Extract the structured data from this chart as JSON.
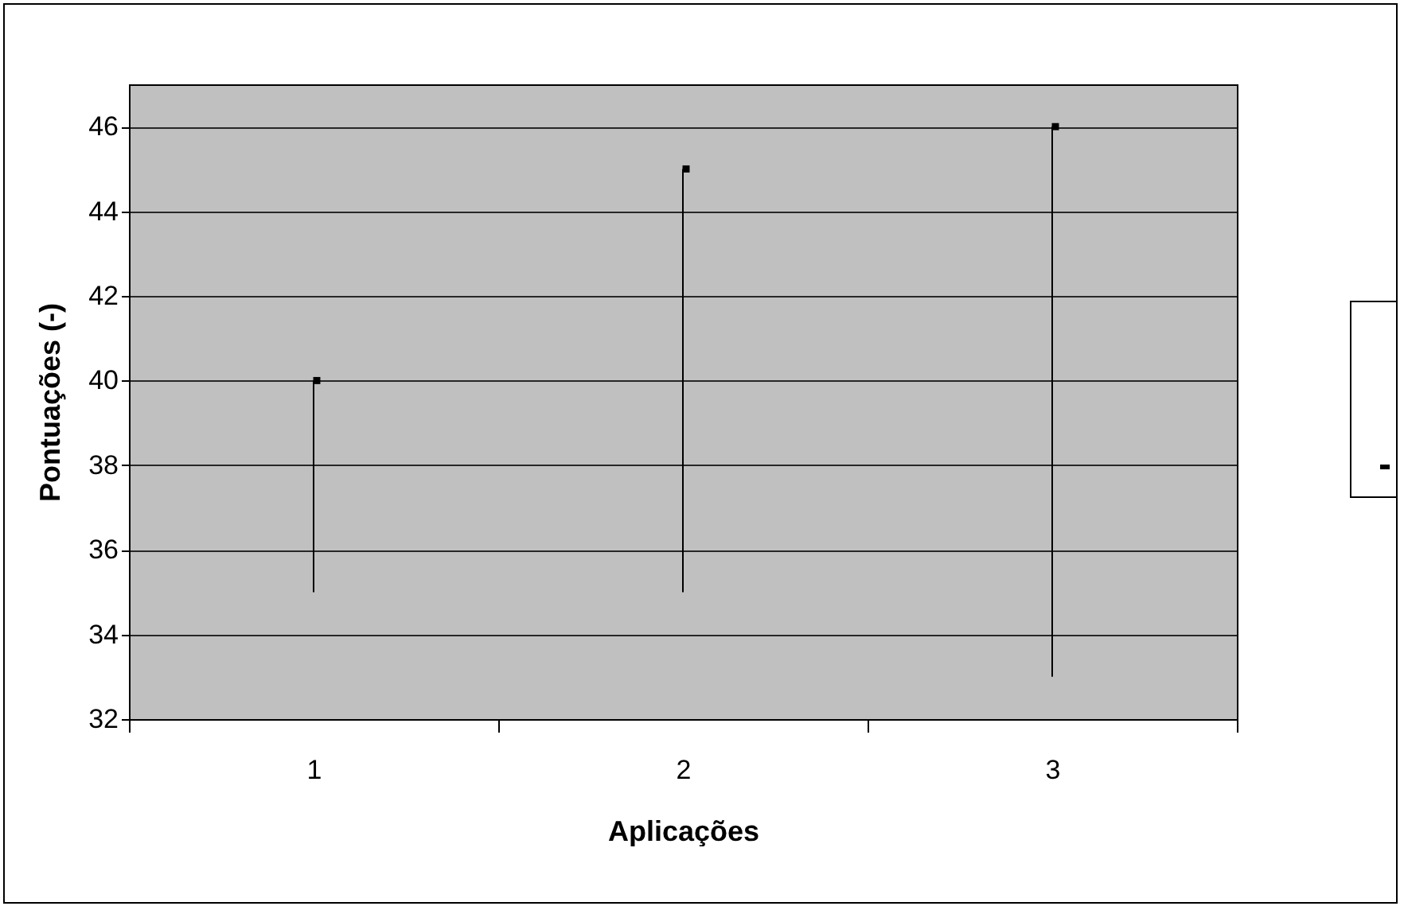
{
  "chart_data": {
    "type": "scatter",
    "xlabel": "Aplicações",
    "ylabel": "Pontuações (-)",
    "categories": [
      "1",
      "2",
      "3"
    ],
    "series": [
      {
        "color": "#000000",
        "values": [
          40,
          45,
          46
        ],
        "errors": [
          [
            35,
            40
          ],
          [
            35,
            45
          ],
          [
            33,
            46
          ]
        ]
      }
    ],
    "ylim": [
      32,
      47
    ],
    "yticks": [
      32,
      34,
      36,
      38,
      40,
      42,
      44,
      46
    ],
    "grid": "y",
    "marker": "square"
  }
}
